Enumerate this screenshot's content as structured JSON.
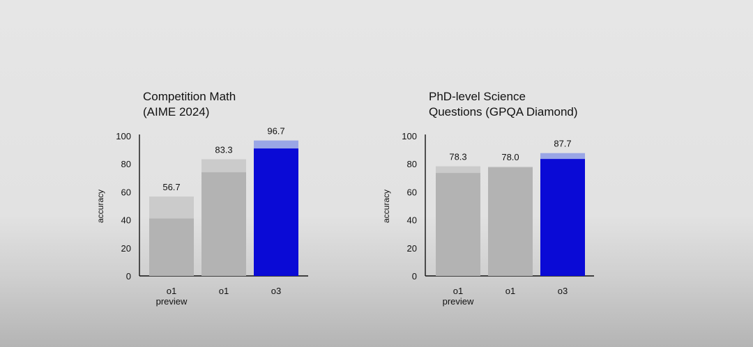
{
  "colors": {
    "background": "#e4e4e4",
    "bar_gray": "#b3b3b3",
    "bar_gray_light": "#cbcbcb",
    "bar_blue": "#0a0ad6",
    "bar_blue_light": "#9aa6e6",
    "axis": "#111111",
    "text": "#111111"
  },
  "chart_data": [
    {
      "type": "bar",
      "title_lines": [
        "Competition Math",
        "(AIME 2024)"
      ],
      "ylabel": "accuracy",
      "ylim": [
        0,
        100
      ],
      "yticks": [
        0,
        20,
        40,
        60,
        80,
        100
      ],
      "categories": [
        [
          "o1",
          "preview"
        ],
        [
          "o1"
        ],
        [
          "o3"
        ]
      ],
      "values": [
        56.7,
        83.3,
        96.7
      ],
      "base_values": [
        41,
        74,
        91
      ],
      "value_labels": [
        "56.7",
        "83.3",
        "96.7"
      ],
      "bar_colors": [
        "gray",
        "gray",
        "blue"
      ],
      "grid": false
    },
    {
      "type": "bar",
      "title_lines": [
        "PhD-level Science",
        "Questions (GPQA Diamond)"
      ],
      "ylabel": "accuracy",
      "ylim": [
        0,
        100
      ],
      "yticks": [
        0,
        20,
        40,
        60,
        80,
        100
      ],
      "categories": [
        [
          "o1",
          "preview"
        ],
        [
          "o1"
        ],
        [
          "o3"
        ]
      ],
      "values": [
        78.3,
        78.0,
        87.7
      ],
      "base_values": [
        73.5,
        77.5,
        83.5
      ],
      "value_labels": [
        "78.3",
        "78.0",
        "87.7"
      ],
      "bar_colors": [
        "gray",
        "gray",
        "blue"
      ],
      "grid": false
    }
  ]
}
